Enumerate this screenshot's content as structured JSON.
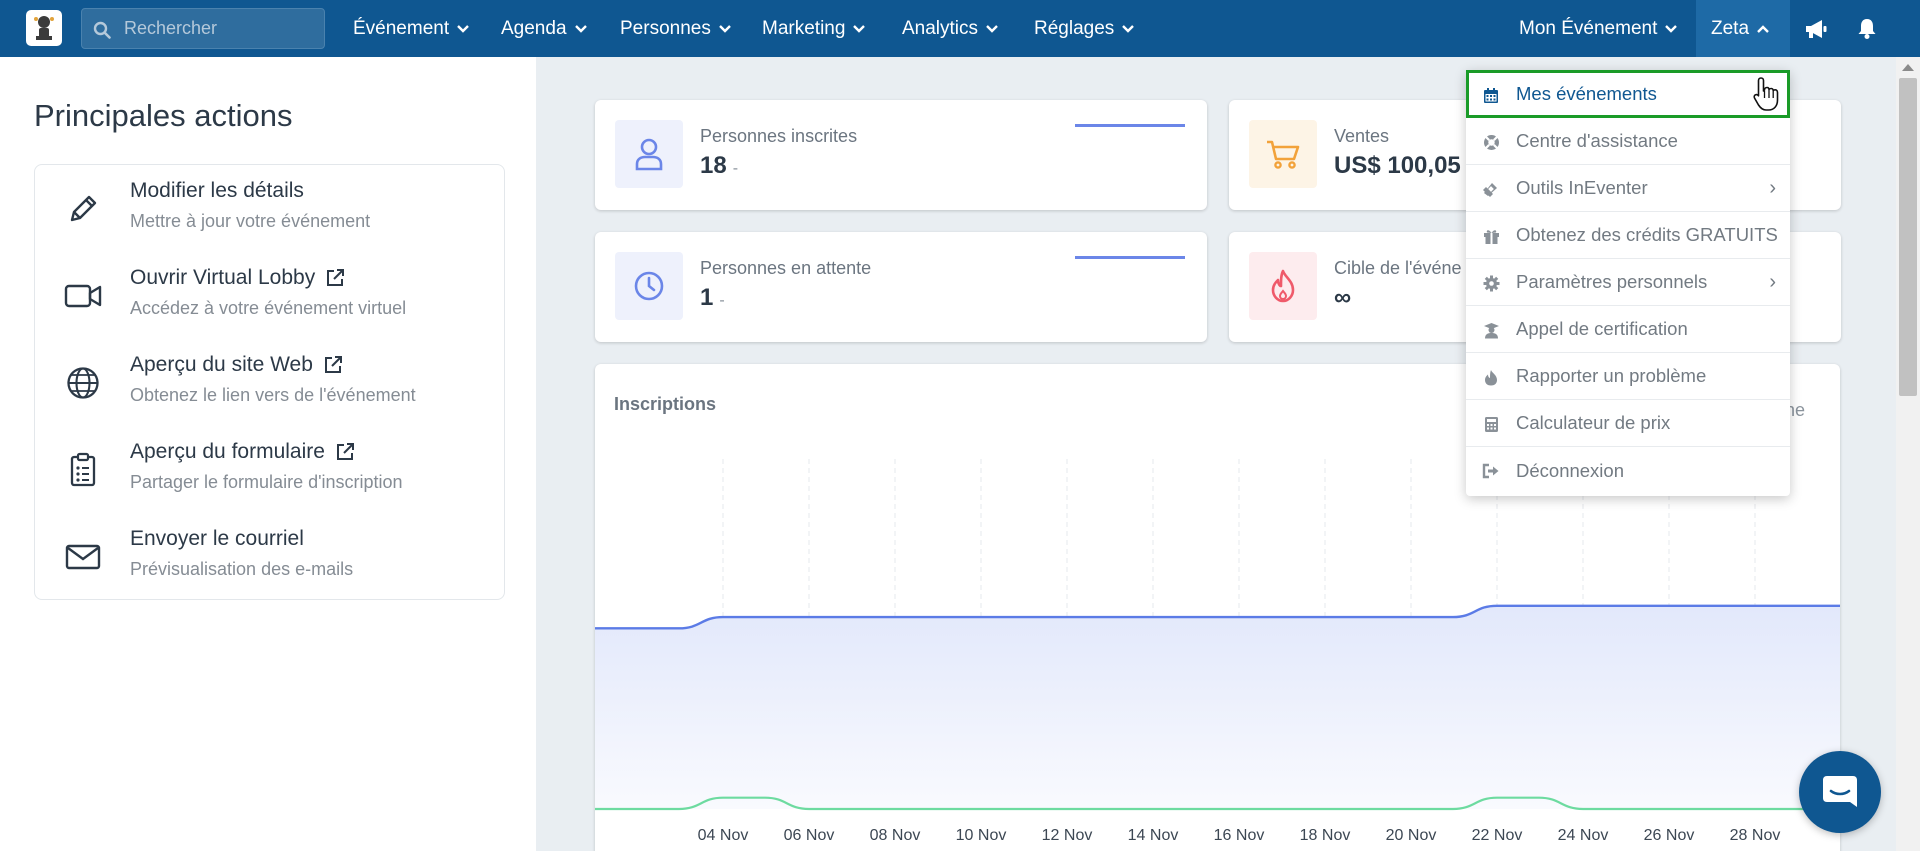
{
  "search": {
    "placeholder": "Rechercher"
  },
  "nav": {
    "items": [
      {
        "label": "Événement"
      },
      {
        "label": "Agenda"
      },
      {
        "label": "Personnes"
      },
      {
        "label": "Marketing"
      },
      {
        "label": "Analytics"
      },
      {
        "label": "Réglages"
      }
    ],
    "event_menu": "Mon Événement",
    "user_menu": "Zeta"
  },
  "left_panel": {
    "title": "Principales actions",
    "actions": [
      {
        "title": "Modifier les détails",
        "subtitle": "Mettre à jour votre événement",
        "icon": "pencil-icon",
        "external": false
      },
      {
        "title": "Ouvrir Virtual Lobby",
        "subtitle": "Accédez à votre événement virtuel",
        "icon": "video-camera-icon",
        "external": true
      },
      {
        "title": "Aperçu du site Web",
        "subtitle": "Obtenez le lien vers de l'événement",
        "icon": "globe-icon",
        "external": true
      },
      {
        "title": "Aperçu du formulaire",
        "subtitle": "Partager le formulaire d'inscription",
        "icon": "clipboard-icon",
        "external": true
      },
      {
        "title": "Envoyer le courriel",
        "subtitle": "Prévisualisation des e-mails",
        "icon": "envelope-icon",
        "external": false
      }
    ]
  },
  "stats": [
    {
      "label": "Personnes inscrites",
      "value": "18",
      "suffix": "-",
      "icon": "person-icon",
      "color": "#6b86e8",
      "bg": "#eef1fc"
    },
    {
      "label": "Ventes",
      "value": "US$ 100,05",
      "suffix": "",
      "icon": "cart-icon",
      "color": "#f2a23a",
      "bg": "#fdf4e6"
    },
    {
      "label": "Personnes en attente",
      "value": "1",
      "suffix": "-",
      "icon": "clock-icon",
      "color": "#6b86e8",
      "bg": "#eef1fc"
    },
    {
      "label": "Cible de l'événe",
      "value": "∞",
      "suffix": "",
      "icon": "flame-icon",
      "color": "#ef5a6a",
      "bg": "#fdecee"
    }
  ],
  "chart": {
    "title": "Inscriptions",
    "right_label_fragment": "ne"
  },
  "chart_data": {
    "type": "area",
    "title": "Inscriptions",
    "xlabel": "",
    "ylabel": "",
    "x": [
      "04 Nov",
      "06 Nov",
      "08 Nov",
      "10 Nov",
      "12 Nov",
      "14 Nov",
      "16 Nov",
      "18 Nov",
      "20 Nov",
      "22 Nov",
      "24 Nov",
      "26 Nov",
      "28 Nov"
    ],
    "series": [
      {
        "color": "#5b7be6",
        "values": [
          17,
          17,
          17,
          17,
          17,
          17,
          17,
          17,
          17,
          18,
          18,
          18,
          18
        ],
        "start": 16
      },
      {
        "color": "#6ddba0",
        "values": [
          1,
          0,
          0,
          0,
          0,
          0,
          0,
          0,
          0,
          1,
          0,
          0,
          0
        ],
        "start": 0
      }
    ],
    "grid": "vertical-dashed",
    "legend": "none"
  },
  "dropdown": {
    "items": [
      {
        "label": "Mes événements",
        "icon": "calendar-icon",
        "active": true,
        "submenu": false
      },
      {
        "label": "Centre d'assistance",
        "icon": "lifebuoy-icon",
        "active": false,
        "submenu": false
      },
      {
        "label": "Outils InEventer",
        "icon": "tools-icon",
        "active": false,
        "submenu": true
      },
      {
        "label": "Obtenez des crédits GRATUITS",
        "icon": "gift-icon",
        "active": false,
        "submenu": false
      },
      {
        "label": "Paramètres personnels",
        "icon": "gear-icon",
        "active": false,
        "submenu": true
      },
      {
        "label": "Appel de certification",
        "icon": "graduate-icon",
        "active": false,
        "submenu": false
      },
      {
        "label": "Rapporter un problème",
        "icon": "fire-icon",
        "active": false,
        "submenu": false
      },
      {
        "label": "Calculateur de prix",
        "icon": "calculator-icon",
        "active": false,
        "submenu": false
      },
      {
        "label": "Déconnexion",
        "icon": "logout-icon",
        "active": false,
        "submenu": false
      }
    ]
  },
  "colors": {
    "nav_bg": "#0f5791",
    "accent": "#1a9b28",
    "link": "#0f5791"
  }
}
